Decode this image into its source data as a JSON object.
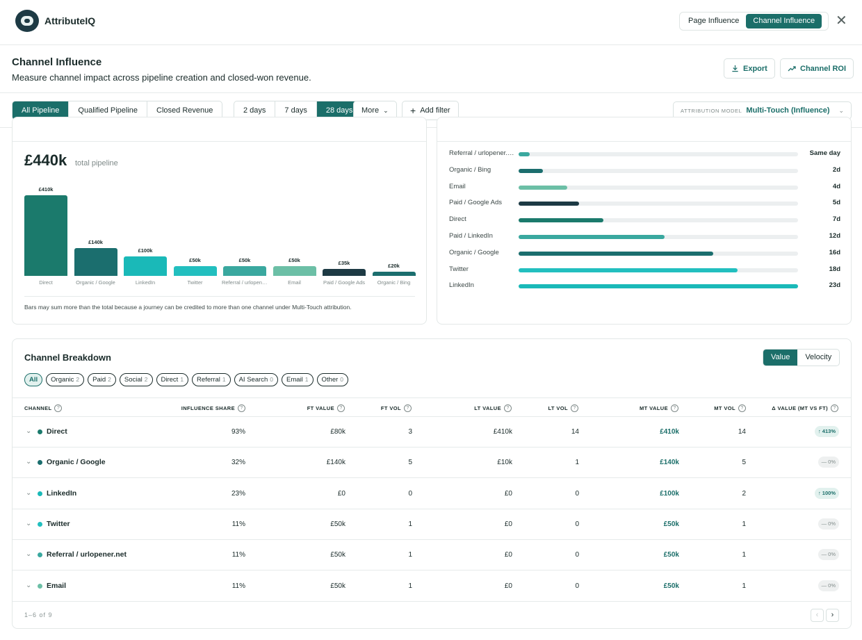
{
  "app": {
    "name": "AttributeIQ",
    "view_tabs": [
      "Page Influence",
      "Channel Influence"
    ],
    "active_view": 1
  },
  "header": {
    "title": "Channel Influence",
    "subtitle": "Measure channel impact across pipeline creation and closed-won revenue.",
    "export_label": "Export",
    "roi_label": "Channel ROI"
  },
  "filters": {
    "metric_tabs": [
      "All Pipeline",
      "Qualified Pipeline",
      "Closed Revenue"
    ],
    "period_tabs": [
      "2 days",
      "7 days",
      "28 days"
    ],
    "more_label": "More",
    "add_filter_label": "Add filter",
    "attribution_label": "ATTRIBUTION MODEL",
    "attribution_value": "Multi-Touch (Influence)"
  },
  "pipeline_card": {
    "total": "£440k",
    "total_label": "total pipeline",
    "note": "Bars may sum more than the total because a journey can be credited to more than one channel under Multi-Touch attribution."
  },
  "chart_data": [
    {
      "type": "bar",
      "categories": [
        "Direct",
        "Organic / Google",
        "LinkedIn",
        "Twitter",
        "Referral / urlopener.net",
        "Email",
        "Paid / Google Ads",
        "Organic / Bing"
      ],
      "values": [
        410,
        140,
        100,
        50,
        50,
        50,
        35,
        20
      ],
      "value_labels": [
        "£410k",
        "£140k",
        "£100k",
        "£50k",
        "£50k",
        "£50k",
        "£35k",
        "£20k"
      ],
      "colors": [
        "#1b7a6c",
        "#1b6e6e",
        "#1ab9b8",
        "#22bfbf",
        "#3aa89f",
        "#6cbfa6",
        "#1d3a44",
        "#1b6e6e"
      ],
      "ylim": [
        0,
        410
      ]
    },
    {
      "type": "bar",
      "orientation": "horizontal",
      "categories": [
        "Referral / urlopener.net",
        "Organic / Bing",
        "Email",
        "Paid / Google Ads",
        "Direct",
        "Paid / LinkedIn",
        "Organic / Google",
        "Twitter",
        "LinkedIn"
      ],
      "values": [
        0,
        2,
        4,
        5,
        7,
        12,
        16,
        18,
        23
      ],
      "value_labels": [
        "Same day",
        "2d",
        "4d",
        "5d",
        "7d",
        "12d",
        "16d",
        "18d",
        "23d"
      ],
      "colors": [
        "#3aa89f",
        "#1b6e6e",
        "#6cbfa6",
        "#1d3a44",
        "#1b7a6c",
        "#3aa89f",
        "#1b6e6e",
        "#22bfbf",
        "#1ab9b8"
      ],
      "xlim": [
        0,
        23
      ]
    }
  ],
  "breakdown": {
    "title": "Channel Breakdown",
    "toggle": [
      "Value",
      "Velocity"
    ],
    "chips": [
      {
        "label": "All",
        "count": ""
      },
      {
        "label": "Organic",
        "count": "2"
      },
      {
        "label": "Paid",
        "count": "2"
      },
      {
        "label": "Social",
        "count": "2"
      },
      {
        "label": "Direct",
        "count": "1"
      },
      {
        "label": "Referral",
        "count": "1"
      },
      {
        "label": "AI Search",
        "count": "0"
      },
      {
        "label": "Email",
        "count": "1"
      },
      {
        "label": "Other",
        "count": "0"
      }
    ],
    "columns": [
      "CHANNEL",
      "INFLUENCE SHARE",
      "FT VALUE",
      "FT VOL",
      "LT VALUE",
      "LT VOL",
      "MT VALUE",
      "MT VOL",
      "Δ VALUE (MT VS FT)"
    ],
    "rows": [
      {
        "channel": "Direct",
        "color": "#1b7a6c",
        "share": "93%",
        "ft_value": "£80k",
        "ft_vol": "3",
        "lt_value": "£410k",
        "lt_vol": "14",
        "mt_value": "£410k",
        "mt_vol": "14",
        "delta": "↑ 413%",
        "delta_up": true
      },
      {
        "channel": "Organic / Google",
        "color": "#1b6e6e",
        "share": "32%",
        "ft_value": "£140k",
        "ft_vol": "5",
        "lt_value": "£10k",
        "lt_vol": "1",
        "mt_value": "£140k",
        "mt_vol": "5",
        "delta": "— 0%",
        "delta_up": false
      },
      {
        "channel": "LinkedIn",
        "color": "#1ab9b8",
        "share": "23%",
        "ft_value": "£0",
        "ft_vol": "0",
        "lt_value": "£0",
        "lt_vol": "0",
        "mt_value": "£100k",
        "mt_vol": "2",
        "delta": "↑ 100%",
        "delta_up": true
      },
      {
        "channel": "Twitter",
        "color": "#22bfbf",
        "share": "11%",
        "ft_value": "£50k",
        "ft_vol": "1",
        "lt_value": "£0",
        "lt_vol": "0",
        "mt_value": "£50k",
        "mt_vol": "1",
        "delta": "— 0%",
        "delta_up": false
      },
      {
        "channel": "Referral / urlopener.net",
        "color": "#3aa89f",
        "share": "11%",
        "ft_value": "£50k",
        "ft_vol": "1",
        "lt_value": "£0",
        "lt_vol": "0",
        "mt_value": "£50k",
        "mt_vol": "1",
        "delta": "— 0%",
        "delta_up": false
      },
      {
        "channel": "Email",
        "color": "#6cbfa6",
        "share": "11%",
        "ft_value": "£50k",
        "ft_vol": "1",
        "lt_value": "£0",
        "lt_vol": "0",
        "mt_value": "£50k",
        "mt_vol": "1",
        "delta": "— 0%",
        "delta_up": false
      }
    ],
    "pagination": "1–6 of 9"
  }
}
